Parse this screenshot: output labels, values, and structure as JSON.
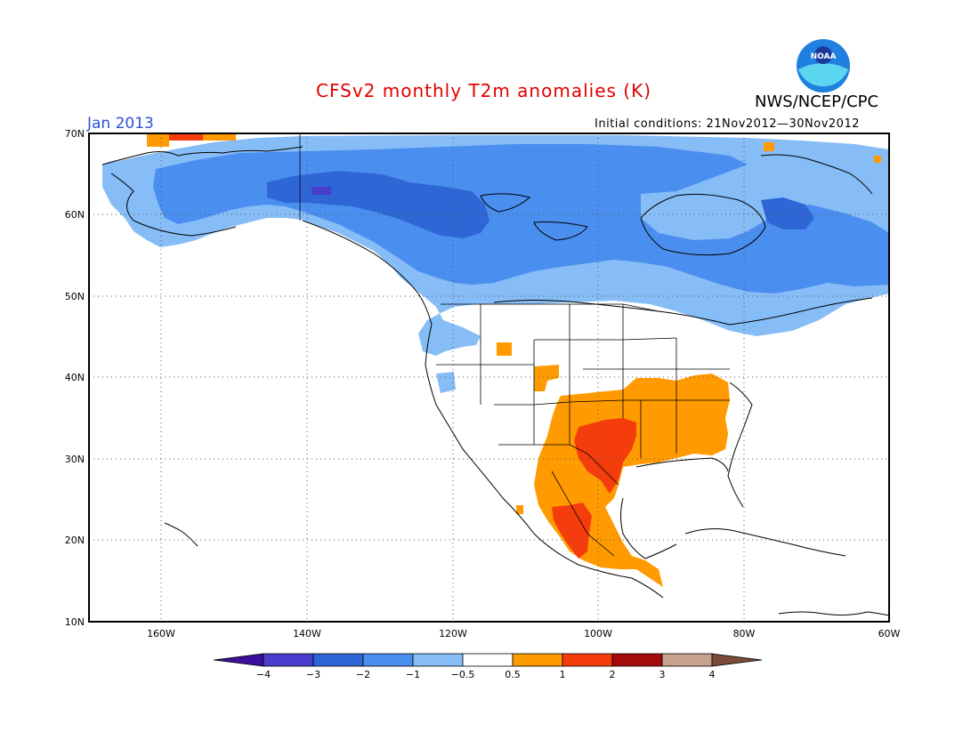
{
  "header": {
    "title": "CFSv2 monthly T2m anomalies (K)",
    "agency": "NWS/NCEP/CPC",
    "logo_text": "NOAA",
    "month": "Jan 2013",
    "initial_conditions": "Initial conditions: 21Nov2012—30Nov2012"
  },
  "axes": {
    "lat_labels": [
      "70N",
      "60N",
      "50N",
      "40N",
      "30N",
      "20N",
      "10N"
    ],
    "lon_labels": [
      "160W",
      "140W",
      "120W",
      "100W",
      "80W",
      "60W"
    ]
  },
  "legend": {
    "thresholds": [
      "−4",
      "−3",
      "−2",
      "−1",
      "−0.5",
      "0.5",
      "1",
      "2",
      "3",
      "4"
    ],
    "colors": [
      "#3a0f9a",
      "#4a3ccd",
      "#2e66d6",
      "#4a8ef0",
      "#86bdf7",
      "#ffffff",
      "#ff9b00",
      "#f53c0c",
      "#a50a0a",
      "#c8a090",
      "#7a4a3a"
    ]
  },
  "colors": {
    "title": "#e00000",
    "month": "#2b50d8",
    "cold_light": "#86bdf7",
    "cold_mid": "#4a8ef0",
    "cold_dark": "#2e66d6",
    "cold_deep": "#4a3ccd",
    "warm_light": "#ff9b00",
    "warm_mid": "#f53c0c",
    "warm_dark": "#a50a0a"
  }
}
